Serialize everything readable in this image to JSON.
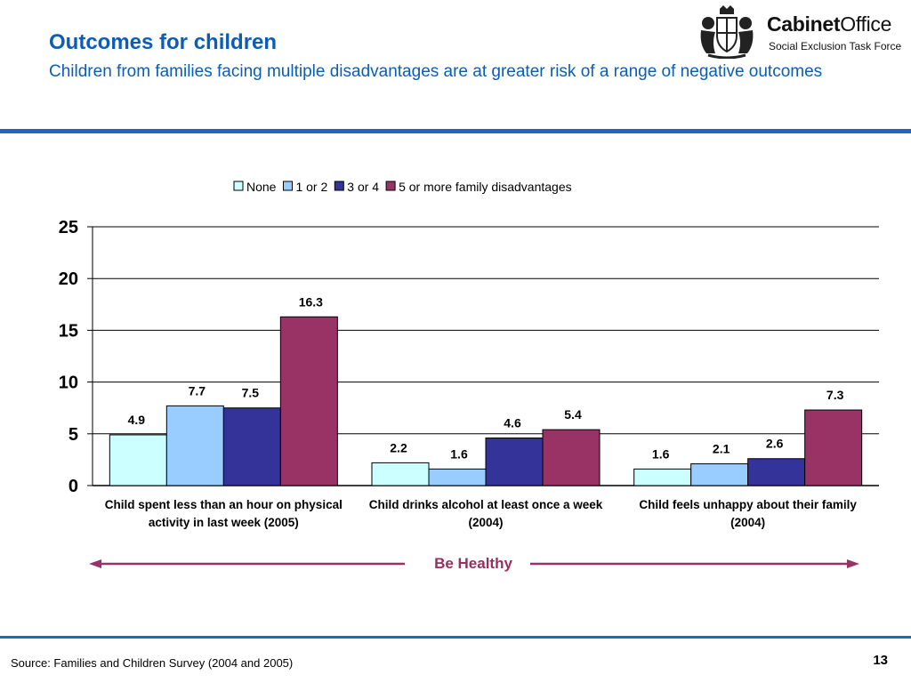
{
  "header": {
    "title": "Outcomes for children",
    "subtitle": "Children from families facing multiple disadvantages are at greater risk of a range of negative outcomes"
  },
  "logo": {
    "name_bold": "Cabinet",
    "name_regular": "Office",
    "subtitle": "Social Exclusion Task Force"
  },
  "chart_data": {
    "type": "bar",
    "categories": [
      "Child spent less than an hour on physical activity in last week (2005)",
      "Child drinks alcohol at least once a week (2004)",
      "Child feels unhappy about their family (2004)"
    ],
    "series": [
      {
        "name": "None",
        "color": "#ccffff",
        "values": [
          4.9,
          2.2,
          1.6
        ]
      },
      {
        "name": "1 or 2",
        "color": "#99ccff",
        "values": [
          7.7,
          1.6,
          2.1
        ]
      },
      {
        "name": "3 or 4",
        "color": "#333399",
        "values": [
          7.5,
          4.6,
          2.6
        ]
      },
      {
        "name": "5 or more family disadvantages",
        "color": "#993366",
        "values": [
          16.3,
          5.4,
          7.3
        ]
      }
    ],
    "ylim": [
      0,
      25
    ],
    "yticks": [
      0,
      5,
      10,
      15,
      20,
      25
    ],
    "grid": true,
    "legend_position": "top",
    "annotation": "Be Healthy",
    "annotation_color": "#993366"
  },
  "footer": {
    "source": "Source: Families and Children Survey (2004 and 2005)",
    "page_number": "13"
  }
}
